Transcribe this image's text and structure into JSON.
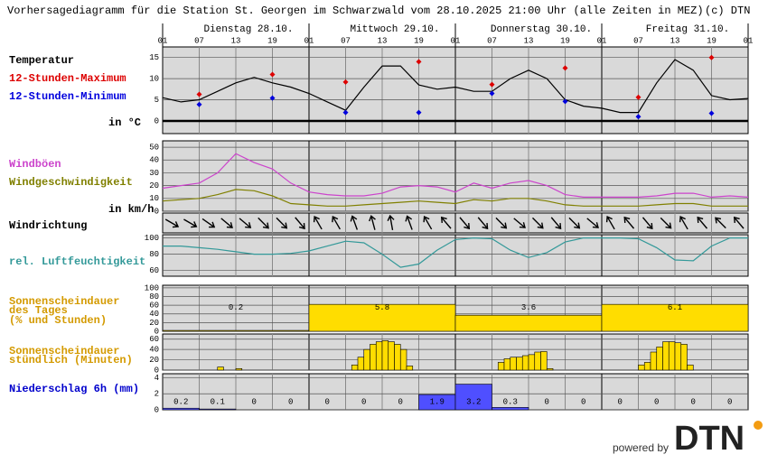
{
  "title": "Vorhersagediagramm für die Station St. Georgen im Schwarzwald vom 28.10.2025 21:00 Uhr (alle Zeiten in MEZ)",
  "copyright": "(c) DTN",
  "time": {
    "xlim": [
      1,
      97
    ],
    "xticks": [
      {
        "value": 1,
        "label": "01"
      },
      {
        "value": 7,
        "label": "07"
      },
      13,
      19,
      {
        "value": 25,
        "label": "01"
      },
      {
        "value": 31,
        "label": "07"
      },
      {
        "value": 37,
        "label": "13"
      },
      {
        "value": 43,
        "label": "19"
      },
      {
        "value": 49,
        "label": "01"
      },
      {
        "value": 55,
        "label": "07"
      },
      {
        "value": 61,
        "label": "13"
      },
      {
        "value": 67,
        "label": "19"
      },
      {
        "value": 73,
        "label": "01"
      },
      {
        "value": 79,
        "label": "07"
      },
      {
        "value": 85,
        "label": "13"
      },
      {
        "value": 91,
        "label": "19"
      },
      {
        "value": 97,
        "label": "01"
      }
    ],
    "days": [
      "Dienstag 28.10.",
      "Mittwoch 29.10.",
      "Donnerstag 30.10.",
      "Freitag 31.10."
    ]
  },
  "chart_data": [
    {
      "type": "line",
      "unit": "in °C",
      "ylim": [
        -3,
        17.5
      ],
      "yticks": [
        15,
        10,
        5,
        0
      ],
      "grid": true,
      "series": [
        {
          "name": "Temperatur",
          "color": "#000000",
          "style": "line",
          "x": [
            1,
            4,
            7,
            10,
            13,
            16,
            19,
            22,
            25,
            28,
            31,
            34,
            37,
            40,
            43,
            46,
            49,
            52,
            55,
            58,
            61,
            64,
            67,
            70,
            73,
            76,
            79,
            82,
            85,
            88,
            91,
            94,
            97
          ],
          "values": [
            5.5,
            4.5,
            5,
            7,
            9,
            10.3,
            9,
            8,
            6.5,
            4.5,
            2.5,
            8,
            13,
            13,
            8.5,
            7.5,
            8,
            7,
            7,
            10,
            12,
            10,
            5,
            3.5,
            3,
            2,
            2,
            9,
            14.5,
            12,
            6,
            5,
            5.3
          ]
        },
        {
          "name": "12-Stunden-Maximum",
          "color": "#dd0000",
          "style": "marker",
          "x": [
            7,
            19,
            31,
            43,
            55,
            67,
            79,
            91
          ],
          "values": [
            6.3,
            11,
            9.2,
            14,
            8.6,
            12.5,
            5.6,
            15
          ]
        },
        {
          "name": "12-Stunden-Minimum",
          "color": "#0000dd",
          "style": "marker",
          "x": [
            7,
            19,
            31,
            43,
            55,
            67,
            79,
            91
          ],
          "values": [
            3.9,
            5.4,
            2,
            2,
            6.5,
            4.6,
            1,
            1.8
          ]
        }
      ]
    },
    {
      "type": "line",
      "unit": "in km/h",
      "ylim": [
        0,
        55
      ],
      "yticks": [
        50,
        40,
        30,
        20,
        10,
        0
      ],
      "grid": true,
      "series": [
        {
          "name": "Windböen",
          "color": "#cc44cc",
          "style": "line",
          "x": [
            1,
            4,
            7,
            10,
            13,
            16,
            19,
            22,
            25,
            28,
            31,
            34,
            37,
            40,
            43,
            46,
            49,
            52,
            55,
            58,
            61,
            64,
            67,
            70,
            73,
            76,
            79,
            82,
            85,
            88,
            91,
            94,
            97
          ],
          "values": [
            18,
            20,
            22,
            30,
            45,
            38,
            33,
            22,
            15,
            13,
            12,
            12,
            14,
            19,
            20,
            19,
            15,
            22,
            18,
            22,
            24,
            20,
            13,
            11,
            11,
            11,
            11,
            12,
            14,
            14,
            11,
            12,
            11
          ]
        },
        {
          "name": "Windgeschwindigkeit",
          "color": "#808000",
          "style": "line",
          "x": [
            1,
            4,
            7,
            10,
            13,
            16,
            19,
            22,
            25,
            28,
            31,
            34,
            37,
            40,
            43,
            46,
            49,
            52,
            55,
            58,
            61,
            64,
            67,
            70,
            73,
            76,
            79,
            82,
            85,
            88,
            91,
            94,
            97
          ],
          "values": [
            8,
            9,
            10,
            13,
            17,
            16,
            12,
            6,
            5,
            4,
            4,
            5,
            6,
            7,
            8,
            7,
            6,
            9,
            8,
            10,
            10,
            8,
            5,
            4,
            4,
            4,
            4,
            5,
            6,
            6,
            4,
            4,
            4
          ]
        }
      ]
    },
    {
      "type": "arrows",
      "label": "Windrichtung",
      "x": [
        2.5,
        5.5,
        8.5,
        11.5,
        14.5,
        17.5,
        20.5,
        23.5,
        26.5,
        29.5,
        32.5,
        35.5,
        38.5,
        41.5,
        44.5,
        47.5,
        50.5,
        53.5,
        56.5,
        59.5,
        62.5,
        65.5,
        68.5,
        71.5,
        74.5,
        77.5,
        80.5,
        83.5,
        86.5,
        89.5,
        92.5,
        95.5
      ],
      "values": [
        120,
        120,
        125,
        130,
        130,
        135,
        135,
        140,
        330,
        330,
        340,
        345,
        350,
        340,
        330,
        320,
        140,
        140,
        135,
        130,
        135,
        140,
        135,
        130,
        330,
        320,
        140,
        135,
        330,
        320,
        315,
        320
      ]
    },
    {
      "type": "line",
      "ylim": [
        53,
        104
      ],
      "yticks": [
        100,
        80,
        60
      ],
      "grid": true,
      "series": [
        {
          "name": "rel. Luftfeuchtigkeit",
          "color": "#339999",
          "style": "line",
          "x": [
            1,
            4,
            7,
            10,
            13,
            16,
            19,
            22,
            25,
            28,
            31,
            34,
            37,
            40,
            43,
            46,
            49,
            52,
            55,
            58,
            61,
            64,
            67,
            70,
            73,
            76,
            79,
            82,
            85,
            88,
            91,
            94,
            97
          ],
          "values": [
            90,
            90,
            88,
            86,
            83,
            80,
            80,
            81,
            84,
            90,
            96,
            94,
            80,
            64,
            68,
            85,
            98,
            100,
            99,
            85,
            76,
            82,
            95,
            100,
            100,
            100,
            99,
            88,
            73,
            72,
            90,
            100,
            100
          ]
        }
      ]
    },
    {
      "type": "bar",
      "label": [
        "Sonnenscheindauer",
        "des Tages",
        "(% und Stunden)"
      ],
      "color": "#ffdd00",
      "ylim": [
        0,
        106
      ],
      "yticks": [
        100,
        80,
        60,
        40,
        20,
        0
      ],
      "grid": true,
      "x": [
        1,
        25,
        49,
        73
      ],
      "values": [
        2,
        62,
        37,
        62
      ],
      "hours": [
        0.2,
        5.8,
        3.6,
        6.1
      ]
    },
    {
      "type": "bar",
      "label": [
        "Sonnenscheindauer",
        "stündlich (Minuten)"
      ],
      "color": "#ffdd00",
      "ylim": [
        0,
        70
      ],
      "yticks": [
        60,
        40,
        20,
        0
      ],
      "grid": true,
      "x": [
        10,
        13,
        32,
        33,
        34,
        35,
        36,
        37,
        38,
        39,
        40,
        41,
        56,
        57,
        58,
        59,
        60,
        61,
        62,
        63,
        64,
        79,
        80,
        81,
        82,
        83,
        84,
        85,
        86,
        87
      ],
      "values": [
        6,
        3,
        10,
        25,
        40,
        50,
        55,
        57,
        55,
        50,
        40,
        8,
        15,
        22,
        25,
        25,
        28,
        30,
        35,
        36,
        3,
        10,
        15,
        35,
        45,
        55,
        55,
        53,
        50,
        10
      ]
    },
    {
      "type": "bar",
      "label": "Niederschlag 6h (mm)",
      "color": "#4f4fff",
      "ylim": [
        0,
        4.5
      ],
      "yticks": [
        4,
        2,
        0
      ],
      "grid": true,
      "data_labels": true,
      "x": [
        1,
        7,
        13,
        19,
        25,
        31,
        37,
        43,
        49,
        55,
        61,
        67,
        73,
        79,
        85,
        91
      ],
      "values": [
        0.2,
        0.1,
        0,
        0,
        0,
        0,
        0,
        1.9,
        3.2,
        0.3,
        0,
        0,
        0,
        0,
        0,
        0
      ]
    }
  ],
  "footer": {
    "powered_by": "powered by",
    "brand": "DTN"
  }
}
